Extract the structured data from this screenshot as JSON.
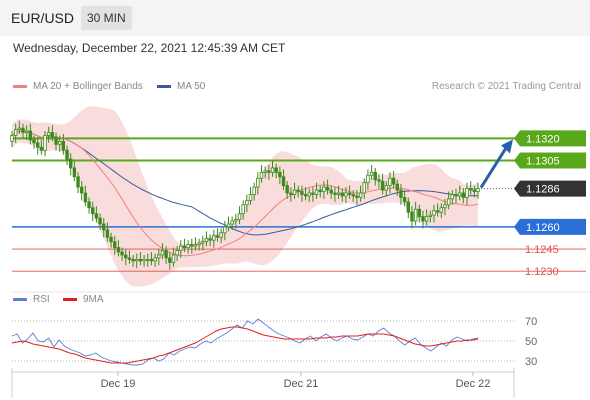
{
  "header": {
    "pair": "EUR/USD",
    "timeframe": "30 MIN",
    "datetime": "Wednesday, December 22, 2021 12:45:39 AM CET"
  },
  "legend": {
    "ma20": "MA 20 + Bollinger Bands",
    "ma50": "MA 50",
    "credit": "Research © 2021 Trading Central",
    "rsi": "RSI",
    "rsi_ma": "9MA"
  },
  "colors": {
    "ma20": "#f08080",
    "ma50": "#3c5a9a",
    "band_fill": "#f9dcdc",
    "candle": "#3d8a1e",
    "resistance": "#59a81b",
    "pivot": "#2a6fd6",
    "support": "#e05050",
    "current": "#333333",
    "arrow": "#2a5ea8",
    "rsi": "#5b7fd6",
    "rsi_ma": "#e02020"
  },
  "chart_data": [
    {
      "type": "candlestick",
      "xlabel": "",
      "ylabel": "",
      "ylim": [
        1.1222,
        1.1344
      ],
      "x_ticks": [
        "Dec 19",
        "Dec 21",
        "Dec 22"
      ],
      "levels": [
        {
          "value": 1.132,
          "label": "1.1320",
          "role": "resistance"
        },
        {
          "value": 1.1305,
          "label": "1.1305",
          "role": "resistance"
        },
        {
          "value": 1.1286,
          "label": "1.1286",
          "role": "current"
        },
        {
          "value": 1.126,
          "label": "1.1260",
          "role": "pivot"
        },
        {
          "value": 1.1245,
          "label": "1.1245",
          "role": "support"
        },
        {
          "value": 1.123,
          "label": "1.1230",
          "role": "support"
        }
      ],
      "close": [
        1.1322,
        1.1326,
        1.1327,
        1.1324,
        1.1325,
        1.1319,
        1.1317,
        1.1314,
        1.1312,
        1.1322,
        1.1324,
        1.1321,
        1.1316,
        1.1318,
        1.1312,
        1.1306,
        1.13,
        1.1294,
        1.1287,
        1.1283,
        1.1277,
        1.1273,
        1.1269,
        1.1266,
        1.1262,
        1.1258,
        1.1253,
        1.125,
        1.1246,
        1.1243,
        1.1241,
        1.1239,
        1.1238,
        1.1237,
        1.1238,
        1.1237,
        1.1238,
        1.1238,
        1.1237,
        1.1239,
        1.1241,
        1.1244,
        1.1239,
        1.1236,
        1.1241,
        1.1244,
        1.1247,
        1.1246,
        1.1248,
        1.1247,
        1.1248,
        1.1249,
        1.125,
        1.1252,
        1.1251,
        1.1254,
        1.1253,
        1.1256,
        1.126,
        1.1262,
        1.1264,
        1.1265,
        1.1269,
        1.1275,
        1.1278,
        1.1282,
        1.1287,
        1.1293,
        1.1297,
        1.1298,
        1.1297,
        1.13,
        1.1297,
        1.1294,
        1.1288,
        1.1283,
        1.1282,
        1.1285,
        1.1284,
        1.1282,
        1.1281,
        1.1283,
        1.1282,
        1.1285,
        1.1284,
        1.1287,
        1.1285,
        1.1283,
        1.1282,
        1.1283,
        1.1281,
        1.1283,
        1.1282,
        1.1281,
        1.128,
        1.1283,
        1.129,
        1.1295,
        1.1297,
        1.1292,
        1.1291,
        1.1285,
        1.1288,
        1.1293,
        1.1289,
        1.1285,
        1.128,
        1.1277,
        1.127,
        1.1264,
        1.1272,
        1.1267,
        1.1264,
        1.1267,
        1.1268,
        1.1271,
        1.127,
        1.1273,
        1.1275,
        1.1279,
        1.1282,
        1.1281,
        1.1283,
        1.128,
        1.1286,
        1.1285,
        1.1284,
        1.1286
      ]
    },
    {
      "type": "line",
      "xlabel": "",
      "ylabel": "",
      "ylim": [
        22,
        78
      ],
      "y_ticks": [
        70,
        50,
        30
      ],
      "x_ticks": [
        "Dec 19",
        "Dec 21",
        "Dec 22"
      ],
      "series": [
        {
          "name": "RSI",
          "values": [
            55,
            57,
            48,
            52,
            58,
            50,
            49,
            53,
            44,
            51,
            45,
            42,
            40,
            38,
            35,
            36,
            38,
            34,
            32,
            30,
            29,
            28,
            27,
            26,
            26,
            27,
            31,
            33,
            30,
            32,
            38,
            36,
            40,
            42,
            44,
            43,
            47,
            50,
            48,
            52,
            55,
            58,
            62,
            66,
            63,
            70,
            67,
            72,
            68,
            64,
            60,
            57,
            55,
            53,
            50,
            48,
            52,
            55,
            50,
            54,
            57,
            53,
            50,
            53,
            55,
            52,
            51,
            54,
            57,
            55,
            60,
            63,
            58,
            55,
            50,
            46,
            50,
            53,
            47,
            43,
            40,
            44,
            48,
            45,
            51,
            54,
            52,
            50,
            52,
            53
          ]
        },
        {
          "name": "9MA",
          "values": [
            48,
            49,
            50,
            49,
            47,
            46,
            45,
            44,
            43,
            42,
            40,
            38,
            37,
            35,
            33,
            32,
            31,
            30,
            29,
            28,
            28,
            28,
            28,
            29,
            30,
            31,
            32,
            33,
            35,
            36,
            38,
            40,
            42,
            44,
            46,
            48,
            51,
            54,
            57,
            60,
            62,
            63,
            64,
            64,
            63,
            62,
            60,
            58,
            56,
            55,
            54,
            53,
            52,
            52,
            52,
            52,
            52,
            52,
            53,
            53,
            53,
            54,
            54,
            55,
            55,
            55,
            55,
            56,
            57,
            57,
            57,
            57,
            56,
            55,
            53,
            51,
            49,
            47,
            46,
            45,
            45,
            46,
            47,
            48,
            49,
            50,
            50,
            51,
            51,
            52
          ]
        }
      ]
    }
  ]
}
